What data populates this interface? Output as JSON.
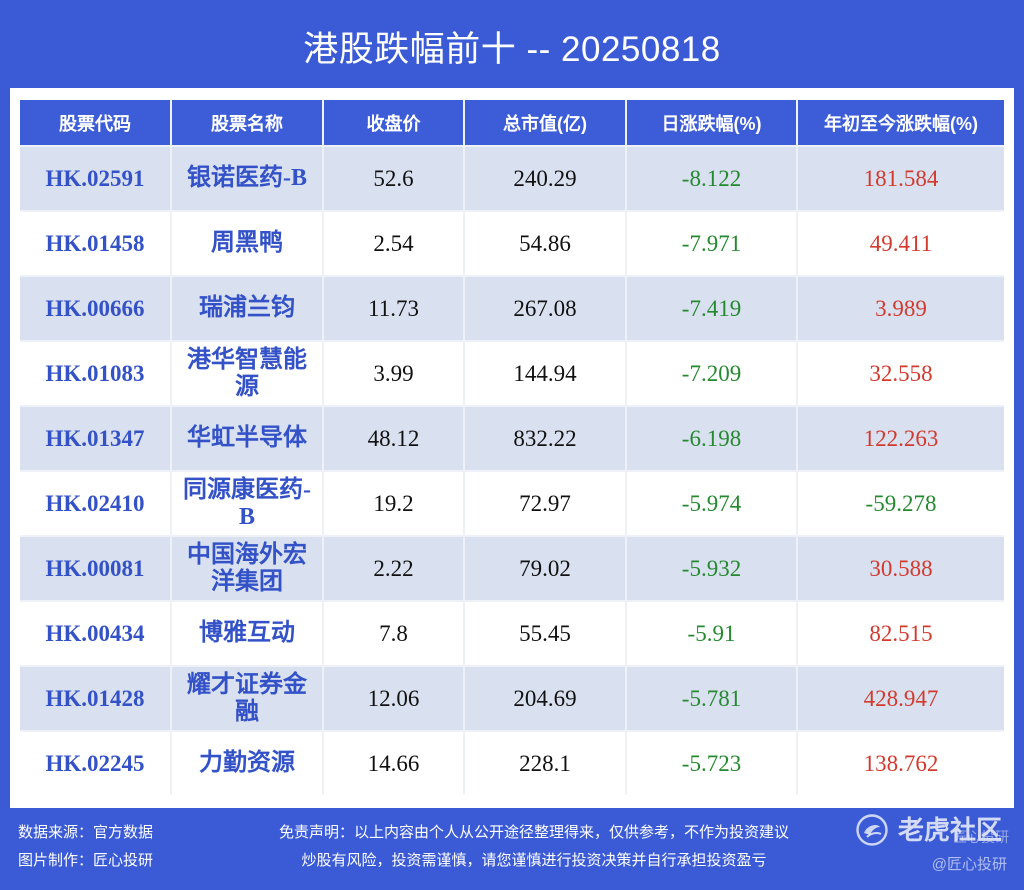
{
  "colors": {
    "background": "#3b5bd6",
    "header_bg": "#3d5dd8",
    "row_alt": "#d9e0ef",
    "code_text": "#3452c8",
    "positive": "#d23a2e",
    "negative": "#25892f"
  },
  "chart_data": {
    "type": "table",
    "title": "港股跌幅前十 -- 20250818",
    "columns": [
      "股票代码",
      "股票名称",
      "收盘价",
      "总市值(亿)",
      "日涨跌幅(%)",
      "年初至今涨跌幅(%)"
    ],
    "rows": [
      {
        "code": "HK.02591",
        "name": "银诺医药-B",
        "close": 52.6,
        "market_cap": 240.29,
        "daily_change": -8.122,
        "ytd_change": 181.584
      },
      {
        "code": "HK.01458",
        "name": "周黑鸭",
        "close": 2.54,
        "market_cap": 54.86,
        "daily_change": -7.971,
        "ytd_change": 49.411
      },
      {
        "code": "HK.00666",
        "name": "瑞浦兰钧",
        "close": 11.73,
        "market_cap": 267.08,
        "daily_change": -7.419,
        "ytd_change": 3.989
      },
      {
        "code": "HK.01083",
        "name": "港华智慧能源",
        "close": 3.99,
        "market_cap": 144.94,
        "daily_change": -7.209,
        "ytd_change": 32.558
      },
      {
        "code": "HK.01347",
        "name": "华虹半导体",
        "close": 48.12,
        "market_cap": 832.22,
        "daily_change": -6.198,
        "ytd_change": 122.263
      },
      {
        "code": "HK.02410",
        "name": "同源康医药-B",
        "close": 19.2,
        "market_cap": 72.97,
        "daily_change": -5.974,
        "ytd_change": -59.278
      },
      {
        "code": "HK.00081",
        "name": "中国海外宏洋集团",
        "close": 2.22,
        "market_cap": 79.02,
        "daily_change": -5.932,
        "ytd_change": 30.588
      },
      {
        "code": "HK.00434",
        "name": "博雅互动",
        "close": 7.8,
        "market_cap": 55.45,
        "daily_change": -5.91,
        "ytd_change": 82.515
      },
      {
        "code": "HK.01428",
        "name": "耀才证券金融",
        "close": 12.06,
        "market_cap": 204.69,
        "daily_change": -5.781,
        "ytd_change": 428.947
      },
      {
        "code": "HK.02245",
        "name": "力勤资源",
        "close": 14.66,
        "market_cap": 228.1,
        "daily_change": -5.723,
        "ytd_change": 138.762
      }
    ]
  },
  "footer": {
    "source": "数据来源：官方数据",
    "maker": "图片制作：匠心投研",
    "disclaimer": "免责声明：以上内容由个人从公开途径整理得来，仅供参考，不作为投资建议",
    "risk": "炒股有风险，投资需谨慎，请您谨慎进行投资决策并自行承担投资盈亏"
  },
  "watermark": {
    "icon": "tiger-logo-icon",
    "brand": "老虎社区",
    "author": "匠心投研",
    "handle": "@匠心投研"
  }
}
